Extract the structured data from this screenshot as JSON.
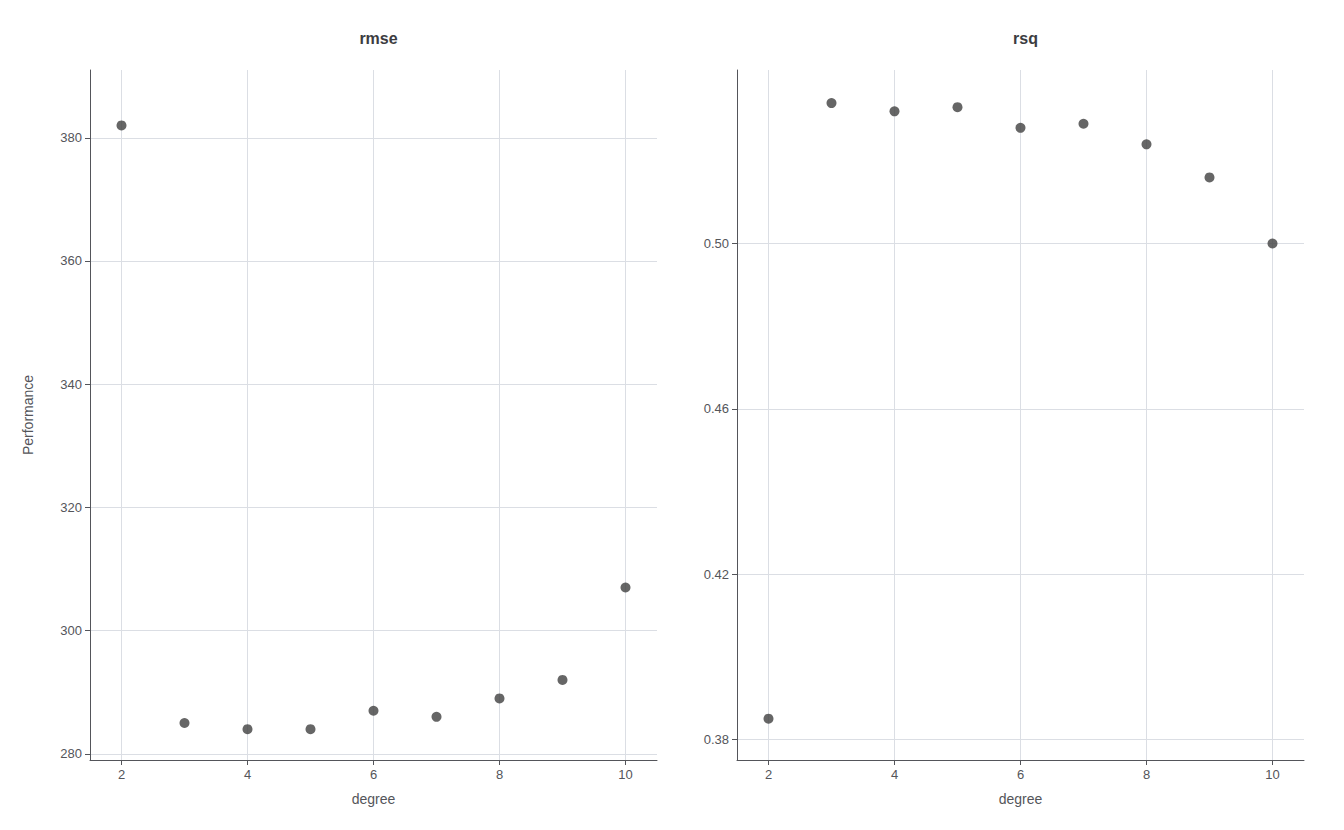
{
  "chart_data": [
    {
      "type": "scatter",
      "title": "rmse",
      "x": [
        2,
        3,
        4,
        5,
        6,
        7,
        8,
        9,
        10
      ],
      "values": [
        382,
        285,
        284,
        284,
        287,
        286,
        289,
        292,
        307
      ],
      "xlim": [
        1.5,
        10.5
      ],
      "xticks": [
        2,
        4,
        6,
        8,
        10
      ],
      "ylim": [
        279,
        391
      ],
      "yticks": [
        280,
        300,
        320,
        340,
        360,
        380
      ],
      "xlabel": "degree",
      "ylabel": "Performance",
      "color": "#404040",
      "grid": true
    },
    {
      "type": "scatter",
      "title": "rsq",
      "x": [
        2,
        3,
        4,
        5,
        6,
        7,
        8,
        9,
        10
      ],
      "values": [
        0.385,
        0.534,
        0.532,
        0.533,
        0.528,
        0.529,
        0.524,
        0.516,
        0.5
      ],
      "xlim": [
        1.5,
        10.5
      ],
      "xticks": [
        2,
        4,
        6,
        8,
        10
      ],
      "ylim": [
        0.375,
        0.542
      ],
      "yticks": [
        0.38,
        0.42,
        0.46,
        {
          "value": 0.5,
          "label": "0.50"
        }
      ],
      "xlabel": "degree",
      "color": "#404040",
      "grid": true
    }
  ]
}
